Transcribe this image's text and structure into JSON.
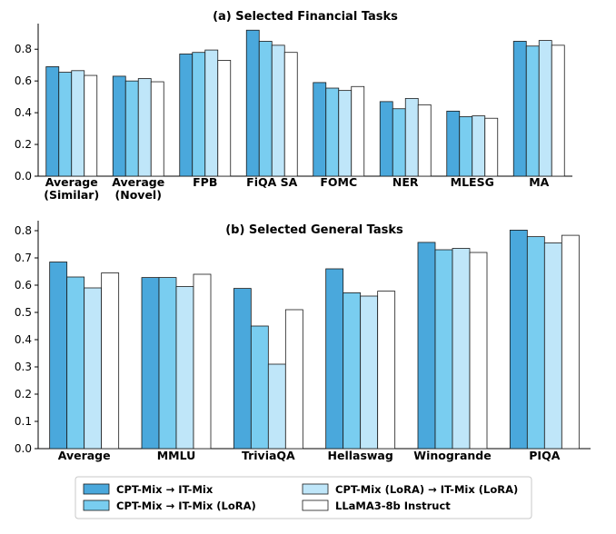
{
  "chart_data": [
    {
      "type": "bar",
      "title": "(a) Selected Financial Tasks",
      "categories": [
        "Average\n(Similar)",
        "Average\n(Novel)",
        "FPB",
        "FiQA SA",
        "FOMC",
        "NER",
        "MLESG",
        "MA"
      ],
      "ylim": [
        0,
        0.95
      ],
      "yticks": [
        "0.0",
        "0.2",
        "0.4",
        "0.6",
        "0.8"
      ],
      "grid": false,
      "series": [
        {
          "name": "CPT-Mix → IT-Mix",
          "values": [
            0.69,
            0.63,
            0.77,
            0.92,
            0.59,
            0.47,
            0.41,
            0.85
          ]
        },
        {
          "name": "CPT-Mix → IT-Mix (LoRA)",
          "values": [
            0.655,
            0.6,
            0.78,
            0.85,
            0.555,
            0.425,
            0.375,
            0.82
          ]
        },
        {
          "name": "CPT-Mix (LoRA) → IT-Mix (LoRA)",
          "values": [
            0.665,
            0.615,
            0.795,
            0.825,
            0.54,
            0.49,
            0.38,
            0.855
          ]
        },
        {
          "name": "LLaMA3-8b Instruct",
          "values": [
            0.635,
            0.595,
            0.73,
            0.78,
            0.565,
            0.45,
            0.365,
            0.825
          ]
        }
      ]
    },
    {
      "type": "bar",
      "title": "(b) Selected General Tasks",
      "categories": [
        "Average",
        "MMLU",
        "TriviaQA",
        "Hellaswag",
        "Winogrande",
        "PIQA"
      ],
      "ylim": [
        0,
        0.83
      ],
      "yticks": [
        "0.0",
        "0.1",
        "0.2",
        "0.3",
        "0.4",
        "0.5",
        "0.6",
        "0.7",
        "0.8"
      ],
      "grid": false,
      "series": [
        {
          "name": "CPT-Mix → IT-Mix",
          "values": [
            0.685,
            0.628,
            0.588,
            0.66,
            0.757,
            0.802
          ]
        },
        {
          "name": "CPT-Mix → IT-Mix (LoRA)",
          "values": [
            0.63,
            0.628,
            0.45,
            0.572,
            0.73,
            0.778
          ]
        },
        {
          "name": "CPT-Mix (LoRA) → IT-Mix (LoRA)",
          "values": [
            0.59,
            0.595,
            0.31,
            0.56,
            0.735,
            0.755
          ]
        },
        {
          "name": "LLaMA3-8b Instruct",
          "values": [
            0.645,
            0.64,
            0.51,
            0.578,
            0.72,
            0.783
          ]
        }
      ]
    }
  ],
  "colors": [
    "#4aa8dc",
    "#79cdf0",
    "#bfe6f9",
    "#ffffff"
  ],
  "legend": {
    "placement": "bottom-center",
    "items": [
      {
        "label": "CPT-Mix → IT-Mix",
        "color": "#4aa8dc"
      },
      {
        "label": "CPT-Mix → IT-Mix (LoRA)",
        "color": "#79cdf0"
      },
      {
        "label": "CPT-Mix (LoRA) → IT-Mix (LoRA)",
        "color": "#bfe6f9"
      },
      {
        "label": "LLaMA3-8b Instruct",
        "color": "#ffffff"
      }
    ]
  }
}
